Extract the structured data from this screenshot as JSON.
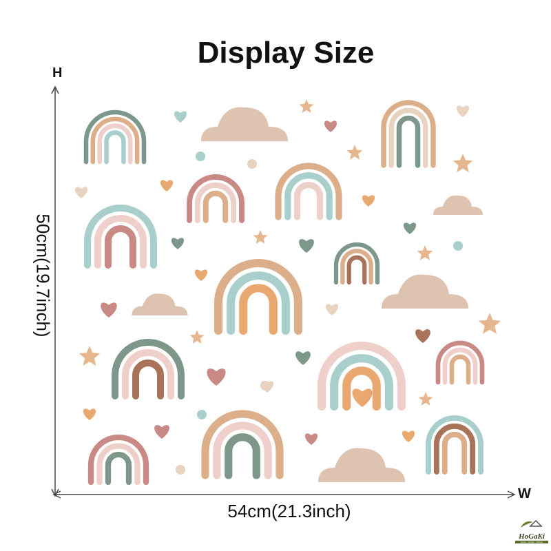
{
  "title": "Display Size",
  "axis": {
    "height_letter": "H",
    "width_letter": "W",
    "width_dim": "54cm(21.3inch)",
    "height_dim": "50cm(19.7inch)"
  },
  "logo": {
    "name": "HoGaKi",
    "tagline": "Home · garden · kitchen"
  },
  "colors": {
    "sage": "#7d978a",
    "blue": "#a9cfcc",
    "pink": "#efcfc9",
    "rose": "#c98a86",
    "tan": "#dcae8a",
    "orange": "#e9a86f",
    "brown": "#a9735a",
    "beige": "#e8d3c0",
    "cloud": "#d9b9a3"
  }
}
